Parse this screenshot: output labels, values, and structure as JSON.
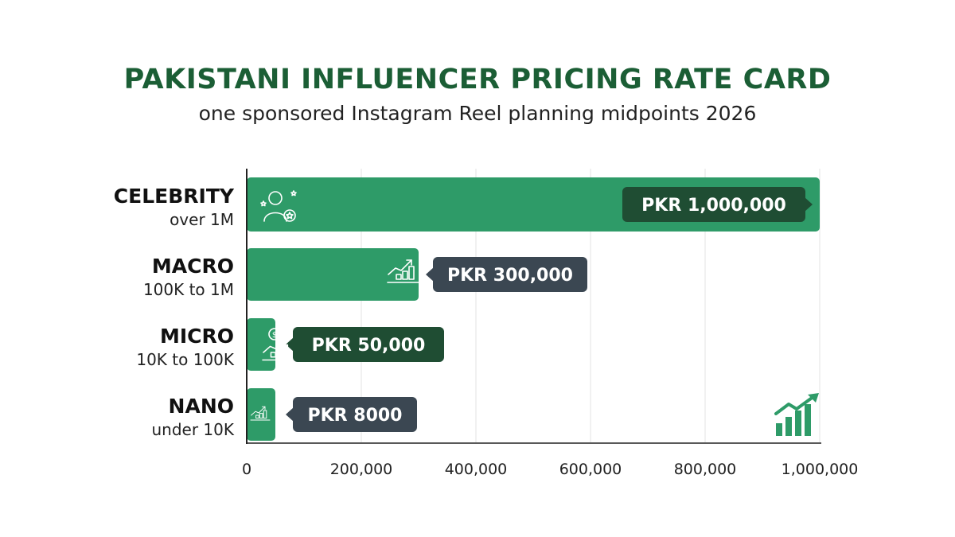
{
  "chart_data": {
    "type": "bar",
    "orientation": "horizontal",
    "title": "PAKISTANI INFLUENCER PRICING RATE CARD",
    "subtitle": "one sponsored Instagram Reel planning midpoints 2026",
    "categories": [
      {
        "name": "CELEBRITY",
        "range": "over 1M"
      },
      {
        "name": "MACRO",
        "range": "100K to 1M"
      },
      {
        "name": "MICRO",
        "range": "10K to 100K"
      },
      {
        "name": "NANO",
        "range": "under 10K"
      }
    ],
    "values": [
      1000000,
      300000,
      50000,
      8000
    ],
    "value_labels": [
      "PKR 1,000,000",
      "PKR 300,000",
      "PKR 50,000",
      "PKR 8000"
    ],
    "xlim": [
      0,
      1000000
    ],
    "xticks": [
      0,
      200000,
      400000,
      600000,
      800000,
      1000000
    ],
    "xtick_labels": [
      "0",
      "200,000",
      "400,000",
      "600,000",
      "800,000",
      "1,000,000"
    ],
    "grid": "vertical",
    "icons": [
      "celebrity-person-star-icon",
      "growth-chart-icon",
      "dollar-growth-chart-icon",
      "small-growth-chart-icon"
    ],
    "corner_icon": "growth-trend-icon",
    "colors": {
      "bar": "#2e9b68",
      "title": "#1b5e35",
      "label_dark_green": "#1f4d33",
      "label_slate": "#3b4752",
      "grid": "#e3e3e3"
    }
  }
}
